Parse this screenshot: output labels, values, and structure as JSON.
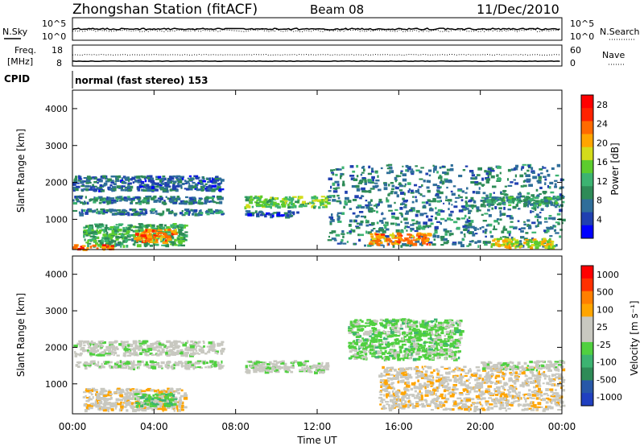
{
  "header": {
    "title": "Zhongshan Station (fitACF)",
    "beam": "Beam 08",
    "date": "11/Dec/2010"
  },
  "aux_panels": {
    "nsky_label": "N.Sky",
    "nsearch_label": "N.Search",
    "freq_label_1": "Freq.",
    "freq_label_2": "[MHz]",
    "nave_label": "Nave",
    "cpid_label": "CPID",
    "cpid_text": "normal (fast stereo) 153",
    "noise_ticks_left": [
      "10^5",
      "10^0"
    ],
    "noise_ticks_right": [
      "10^5",
      "10^0"
    ],
    "freq_ticks_left": [
      "18",
      "8"
    ],
    "nave_ticks_right": [
      "60",
      "0"
    ]
  },
  "panels": {
    "ylabel": "Slant Range [km]",
    "xlabel": "Time UT",
    "power_colorbar_label": "Power [dB]",
    "velocity_colorbar_label": "Velocity [m s⁻¹]"
  },
  "colors": {
    "power": [
      "#0000ff",
      "#2040b0",
      "#2f6e9a",
      "#2e8b57",
      "#3cb371",
      "#5ccc2e",
      "#d4dc1a",
      "#ffa500",
      "#ff6a00",
      "#ff2200",
      "#ff0000"
    ],
    "velocity": [
      "#2040c0",
      "#2858a8",
      "#2e8b57",
      "#3cb371",
      "#50d040",
      "#c8c8c0",
      "#c8c8c0",
      "#ffa500",
      "#ff7f00",
      "#ff3000",
      "#ff0000"
    ]
  },
  "chart_data": [
    {
      "type": "heatmap",
      "name": "power",
      "xlabel": "Time UT",
      "ylabel": "Slant Range [km]",
      "x_ticks": [
        "00:00",
        "04:00",
        "08:00",
        "12:00",
        "16:00",
        "20:00",
        "00:00"
      ],
      "xlim_hours": [
        0,
        24
      ],
      "ylim": [
        180,
        4500
      ],
      "y_ticks": [
        1000,
        2000,
        3000,
        4000
      ],
      "data_gap_hours": [
        7.5,
        8.3
      ],
      "colorbar": {
        "label": "Power [dB]",
        "ticks": [
          4,
          8,
          12,
          16,
          20,
          24,
          28
        ],
        "range": [
          0,
          30
        ]
      },
      "echo_regions": [
        {
          "t0": 0.0,
          "t1": 7.3,
          "r0": 1450,
          "r1": 1650,
          "value": 8
        },
        {
          "t0": 0.0,
          "t1": 7.3,
          "r0": 1800,
          "r1": 2200,
          "value": 6
        },
        {
          "t0": 0.0,
          "t1": 7.3,
          "r0": 1150,
          "r1": 1300,
          "value": 8
        },
        {
          "t0": 0.5,
          "t1": 5.5,
          "r0": 300,
          "r1": 900,
          "value": 12
        },
        {
          "t0": 3.0,
          "t1": 5.0,
          "r0": 400,
          "r1": 750,
          "value": 22
        },
        {
          "t0": 0.0,
          "t1": 2.0,
          "r0": 200,
          "r1": 330,
          "value": 24
        },
        {
          "t0": 8.4,
          "t1": 12.5,
          "r0": 1350,
          "r1": 1650,
          "value": 14
        },
        {
          "t0": 8.4,
          "t1": 11.0,
          "r0": 1100,
          "r1": 1250,
          "value": 6
        },
        {
          "t0": 12.5,
          "t1": 24.0,
          "r0": 300,
          "r1": 2500,
          "value": 8
        },
        {
          "t0": 14.5,
          "t1": 17.5,
          "r0": 350,
          "r1": 650,
          "value": 22
        },
        {
          "t0": 20.5,
          "t1": 23.5,
          "r0": 250,
          "r1": 500,
          "value": 18
        },
        {
          "t0": 20.0,
          "t1": 24.0,
          "r0": 1400,
          "r1": 1650,
          "value": 10
        }
      ]
    },
    {
      "type": "heatmap",
      "name": "velocity",
      "xlabel": "Time UT",
      "ylabel": "Slant Range [km]",
      "x_ticks": [
        "00:00",
        "04:00",
        "08:00",
        "12:00",
        "16:00",
        "20:00",
        "00:00"
      ],
      "xlim_hours": [
        0,
        24
      ],
      "ylim": [
        180,
        4500
      ],
      "y_ticks": [
        1000,
        2000,
        3000,
        4000
      ],
      "data_gap_hours": [
        7.5,
        8.3
      ],
      "colorbar": {
        "label": "Velocity [m s⁻¹]",
        "ticks": [
          1000,
          500,
          100,
          25,
          -25,
          -100,
          -500,
          -1000
        ],
        "range": [
          -1000,
          1000
        ]
      },
      "echo_regions": [
        {
          "t0": 0.0,
          "t1": 7.3,
          "r0": 1450,
          "r1": 1650,
          "value": 0
        },
        {
          "t0": 0.0,
          "t1": 7.3,
          "r0": 1800,
          "r1": 2200,
          "value": 0
        },
        {
          "t0": 0.5,
          "t1": 5.5,
          "r0": 300,
          "r1": 900,
          "value": 200
        },
        {
          "t0": 3.0,
          "t1": 5.0,
          "r0": 400,
          "r1": 750,
          "value": -200
        },
        {
          "t0": 8.4,
          "t1": 12.5,
          "r0": 1350,
          "r1": 1650,
          "value": 0
        },
        {
          "t0": 13.5,
          "t1": 19.0,
          "r0": 1700,
          "r1": 2800,
          "value": -150
        },
        {
          "t0": 15.0,
          "t1": 24.0,
          "r0": 300,
          "r1": 1500,
          "value": 200
        },
        {
          "t0": 20.0,
          "t1": 24.0,
          "r0": 1400,
          "r1": 1650,
          "value": 0
        }
      ]
    }
  ]
}
